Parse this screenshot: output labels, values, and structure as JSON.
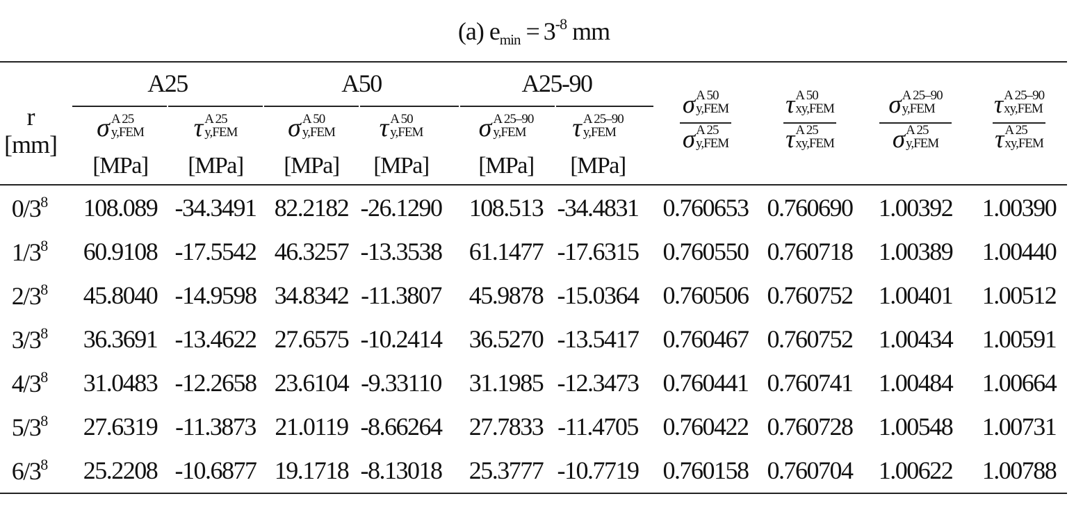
{
  "caption": {
    "prefix": "(a) e",
    "sub": "min",
    "eq": "=",
    "base": "3",
    "exp": "-8",
    "unit": "mm"
  },
  "header": {
    "row_label_line1": "r",
    "row_label_line2": "[mm]",
    "groups": [
      "A25",
      "A50",
      "A25-90"
    ],
    "unit_label": "[MPa]",
    "columns": [
      {
        "sym": "σ",
        "sup": "A 25",
        "sub": "y,FEM"
      },
      {
        "sym": "τ",
        "sup": "A 25",
        "sub": "y,FEM"
      },
      {
        "sym": "σ",
        "sup": "A 50",
        "sub": "y,FEM"
      },
      {
        "sym": "τ",
        "sup": "A 50",
        "sub": "y,FEM"
      },
      {
        "sym": "σ",
        "sup": "A 25–90",
        "sub": "y,FEM"
      },
      {
        "sym": "τ",
        "sup": "A 25–90",
        "sub": "y,FEM"
      }
    ],
    "ratios": [
      {
        "num_sym": "σ",
        "num_sup": "A 50",
        "num_sub": "y,FEM",
        "den_sym": "σ",
        "den_sup": "A 25",
        "den_sub": "y,FEM"
      },
      {
        "num_sym": "τ",
        "num_sup": "A 50",
        "num_sub": "xy,FEM",
        "den_sym": "τ",
        "den_sup": "A 25",
        "den_sub": "xy,FEM"
      },
      {
        "num_sym": "σ",
        "num_sup": "A 25–90",
        "num_sub": "y,FEM",
        "den_sym": "σ",
        "den_sup": "A 25",
        "den_sub": "y,FEM"
      },
      {
        "num_sym": "τ",
        "num_sup": "A 25–90",
        "num_sub": "xy,FEM",
        "den_sym": "τ",
        "den_sup": "A 25",
        "den_sub": "xy,FEM"
      }
    ]
  },
  "rows": [
    {
      "r": "0/3",
      "exp": "8",
      "values": [
        "108.089",
        "-34.3491",
        "82.2182",
        "-26.1290",
        "108.513",
        "-34.4831",
        "0.760653",
        "0.760690",
        "1.00392",
        "1.00390"
      ]
    },
    {
      "r": "1/3",
      "exp": "8",
      "values": [
        "60.9108",
        "-17.5542",
        "46.3257",
        "-13.3538",
        "61.1477",
        "-17.6315",
        "0.760550",
        "0.760718",
        "1.00389",
        "1.00440"
      ]
    },
    {
      "r": "2/3",
      "exp": "8",
      "values": [
        "45.8040",
        "-14.9598",
        "34.8342",
        "-11.3807",
        "45.9878",
        "-15.0364",
        "0.760506",
        "0.760752",
        "1.00401",
        "1.00512"
      ]
    },
    {
      "r": "3/3",
      "exp": "8",
      "values": [
        "36.3691",
        "-13.4622",
        "27.6575",
        "-10.2414",
        "36.5270",
        "-13.5417",
        "0.760467",
        "0.760752",
        "1.00434",
        "1.00591"
      ]
    },
    {
      "r": "4/3",
      "exp": "8",
      "values": [
        "31.0483",
        "-12.2658",
        "23.6104",
        "-9.33110",
        "31.1985",
        "-12.3473",
        "0.760441",
        "0.760741",
        "1.00484",
        "1.00664"
      ]
    },
    {
      "r": "5/3",
      "exp": "8",
      "values": [
        "27.6319",
        "-11.3873",
        "21.0119",
        "-8.66264",
        "27.7833",
        "-11.4705",
        "0.760422",
        "0.760728",
        "1.00548",
        "1.00731"
      ]
    },
    {
      "r": "6/3",
      "exp": "8",
      "values": [
        "25.2208",
        "-10.6877",
        "19.1718",
        "-8.13018",
        "25.3777",
        "-10.7719",
        "0.760158",
        "0.760704",
        "1.00622",
        "1.00788"
      ]
    }
  ]
}
